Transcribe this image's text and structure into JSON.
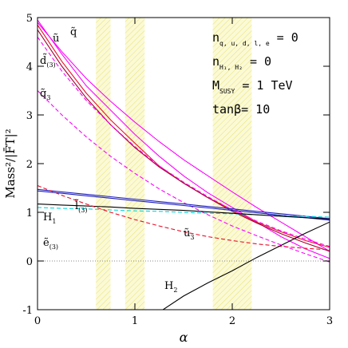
{
  "chart_data": {
    "type": "line",
    "xlabel": "α",
    "ylabel": "Mass²/|F̄T|²",
    "x": [
      0,
      0.25,
      0.5,
      0.75,
      1,
      1.25,
      1.5,
      1.75,
      2,
      2.25,
      2.5,
      2.75,
      3
    ],
    "xlim": [
      0,
      3
    ],
    "ylim": [
      -1,
      5
    ],
    "xticks": [
      0,
      1,
      2,
      3
    ],
    "yticks": [
      -1,
      0,
      1,
      2,
      3,
      4,
      5
    ],
    "bands": [
      [
        0.6,
        0.75
      ],
      [
        0.9,
        1.1
      ],
      [
        1.8,
        2.2
      ]
    ],
    "band_color": "#f4f28a",
    "zero_line": true,
    "series": [
      {
        "color": "#ff00ff",
        "dash": false,
        "values": [
          4.95,
          4.25,
          3.6,
          3.1,
          2.6,
          2.15,
          1.75,
          1.4,
          1.1,
          0.8,
          0.5,
          0.25,
          0.05
        ]
      },
      {
        "color": "#ff00ff",
        "dash": false,
        "values": [
          4.9,
          4.3,
          3.75,
          3.28,
          2.85,
          2.45,
          2.08,
          1.75,
          1.42,
          1.1,
          0.8,
          0.5,
          0.2
        ]
      },
      {
        "color": "#e8102a",
        "dash": false,
        "values": [
          4.85,
          4.1,
          3.45,
          2.9,
          2.42,
          1.95,
          1.6,
          1.3,
          1.05,
          0.8,
          0.6,
          0.42,
          0.28
        ]
      },
      {
        "color": "#a00030",
        "dash": false,
        "values": [
          4.75,
          4.0,
          3.35,
          2.8,
          2.33,
          1.93,
          1.6,
          1.3,
          1.02,
          0.78,
          0.56,
          0.37,
          0.2
        ]
      },
      {
        "color": "#ff00ff",
        "dash": true,
        "values": [
          4.6,
          3.9,
          3.3,
          2.8,
          2.35,
          1.95,
          1.62,
          1.32,
          1.05,
          0.82,
          0.62,
          0.45,
          0.3
        ]
      },
      {
        "color": "#ff00ff",
        "dash": true,
        "values": [
          3.5,
          3.0,
          2.55,
          2.15,
          1.8,
          1.48,
          1.2,
          0.95,
          0.72,
          0.52,
          0.33,
          0.15,
          -0.02
        ]
      },
      {
        "color": "#2020c0",
        "dash": false,
        "values": [
          1.47,
          1.42,
          1.37,
          1.32,
          1.27,
          1.22,
          1.17,
          1.12,
          1.07,
          1.02,
          0.97,
          0.92,
          0.87
        ]
      },
      {
        "color": "#2020c0",
        "dash": false,
        "values": [
          1.44,
          1.39,
          1.34,
          1.29,
          1.24,
          1.19,
          1.14,
          1.09,
          1.04,
          0.99,
          0.94,
          0.89,
          0.84
        ]
      },
      {
        "color": "#00d8e0",
        "dash": true,
        "values": [
          1.1,
          1.08,
          1.07,
          1.05,
          1.03,
          1.02,
          1.0,
          0.98,
          0.97,
          0.95,
          0.93,
          0.92,
          0.9
        ]
      },
      {
        "color": "#000000",
        "dash": false,
        "values": [
          1.17,
          1.15,
          1.13,
          1.11,
          1.08,
          1.06,
          1.04,
          1.01,
          0.98,
          0.95,
          0.92,
          0.89,
          0.86
        ]
      },
      {
        "color": "#e8102a",
        "dash": true,
        "values": [
          1.55,
          1.35,
          1.17,
          1.0,
          0.85,
          0.72,
          0.6,
          0.5,
          0.42,
          0.35,
          0.3,
          0.26,
          0.23
        ]
      },
      {
        "color": "#000000",
        "dash": false,
        "values": [
          null,
          null,
          null,
          null,
          null,
          -1.05,
          -0.72,
          -0.45,
          -0.2,
          0.07,
          0.32,
          0.57,
          0.8
        ]
      }
    ],
    "annotations": [
      {
        "text": "q̃",
        "sub": ""
      },
      {
        "text": "ũ",
        "sub": ""
      },
      {
        "text": "d̃",
        "sub": "(3)"
      },
      {
        "text": "q̃",
        "sub": "3"
      },
      {
        "text": "l̃",
        "sub": "(3)"
      },
      {
        "text": "H",
        "sub": "1"
      },
      {
        "text": "ẽ",
        "sub": "(3)"
      },
      {
        "text": "ũ",
        "sub": "3"
      },
      {
        "text": "H",
        "sub": "2"
      }
    ],
    "info": [
      {
        "text": "n",
        "sub": "q, u, d, l, e",
        "rest": " = 0"
      },
      {
        "text": "n",
        "sub": "H₁, H₂",
        "rest": " = 0"
      },
      {
        "text": "M",
        "sub": "SUSY",
        "rest": " = 1 TeV"
      },
      {
        "text": "tanβ",
        "sub": "",
        "rest": "= 10"
      }
    ]
  }
}
